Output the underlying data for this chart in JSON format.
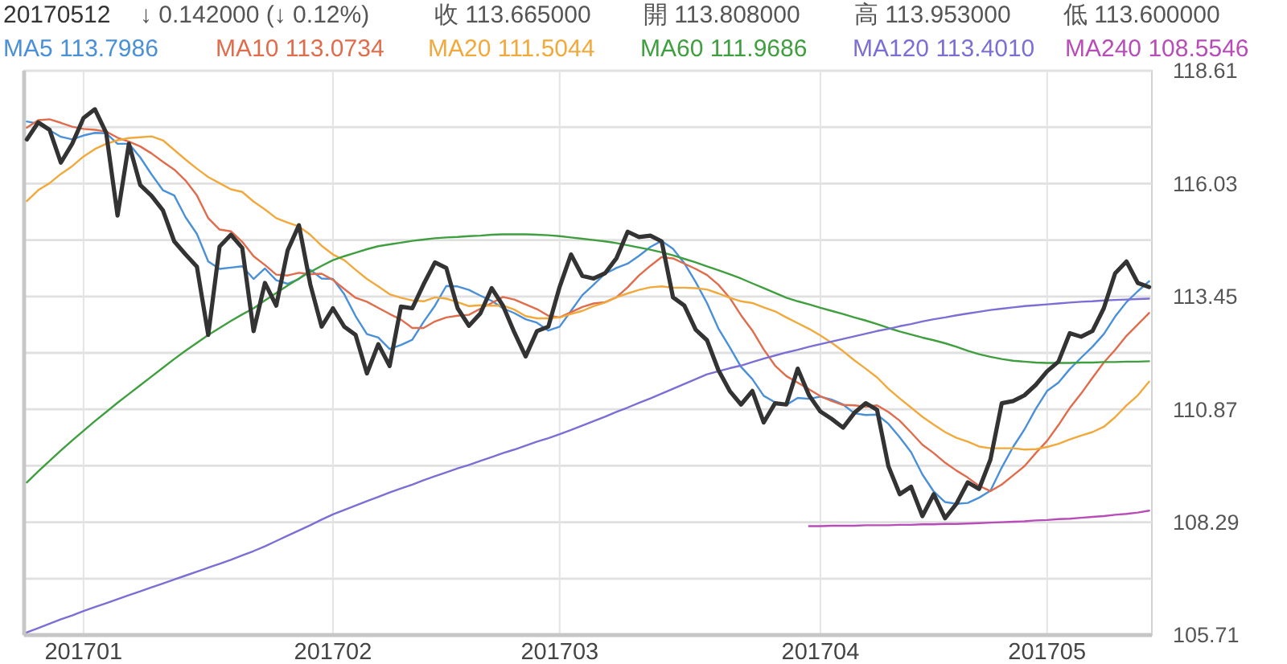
{
  "chart_data": {
    "type": "line",
    "annotations": [
      "20170512",
      "↓ 0.142000 (↓ 0.12%)",
      "收 113.665000",
      "開 113.808000",
      "高 113.953000",
      "低 113.600000"
    ],
    "categories": [
      null,
      null,
      null,
      null,
      null,
      "201701",
      null,
      null,
      null,
      null,
      null,
      null,
      null,
      null,
      null,
      null,
      null,
      null,
      null,
      null,
      null,
      null,
      null,
      null,
      null,
      null,
      null,
      "201702",
      null,
      null,
      null,
      null,
      null,
      null,
      null,
      null,
      null,
      null,
      null,
      null,
      null,
      null,
      null,
      null,
      null,
      null,
      null,
      "201703",
      null,
      null,
      null,
      null,
      null,
      null,
      null,
      null,
      null,
      null,
      null,
      null,
      null,
      null,
      null,
      null,
      null,
      null,
      null,
      null,
      null,
      null,
      "201704",
      null,
      null,
      null,
      null,
      null,
      null,
      null,
      null,
      null,
      null,
      null,
      null,
      null,
      null,
      null,
      null,
      null,
      null,
      null,
      "201705",
      null,
      null,
      null,
      null,
      null,
      null,
      null,
      null,
      null
    ],
    "series": [
      {
        "name": "MA5 113.7986",
        "color": "#4a90d9",
        "values": [
          117.45,
          117.4,
          117.25,
          117.1,
          117.04,
          117.13,
          117.19,
          117.18,
          116.94,
          116.94,
          116.63,
          116.24,
          115.88,
          115.76,
          115.26,
          114.88,
          114.25,
          114.08,
          114.11,
          114.14,
          113.85,
          114.09,
          113.82,
          113.74,
          113.85,
          114.06,
          113.86,
          113.85,
          113.5,
          113.0,
          112.59,
          112.51,
          112.25,
          112.34,
          112.46,
          112.87,
          113.24,
          113.69,
          113.68,
          113.6,
          113.47,
          113.35,
          113.18,
          113.07,
          112.93,
          112.85,
          112.67,
          112.76,
          113.12,
          113.48,
          113.72,
          113.97,
          114.1,
          114.2,
          114.38,
          114.58,
          114.72,
          114.54,
          114.21,
          113.78,
          113.3,
          112.72,
          112.29,
          111.84,
          111.56,
          111.18,
          111.03,
          110.97,
          111.13,
          111.11,
          111.16,
          111.09,
          110.98,
          110.78,
          110.74,
          110.75,
          110.54,
          110.23,
          109.89,
          109.38,
          108.99,
          108.75,
          108.71,
          108.73,
          108.85,
          109.01,
          109.54,
          110.01,
          110.41,
          110.88,
          111.29,
          111.48,
          111.79,
          112.05,
          112.3,
          112.59,
          112.99,
          113.32,
          113.57,
          113.7986
        ]
      },
      {
        "name": "MA10 113.0734",
        "color": "#e06c4c",
        "values": [
          117.31,
          117.48,
          117.5,
          117.42,
          117.33,
          117.28,
          117.26,
          117.22,
          117.08,
          116.99,
          116.88,
          116.72,
          116.53,
          116.35,
          116.1,
          115.76,
          115.24,
          114.98,
          114.94,
          114.7,
          114.37,
          114.17,
          113.95,
          113.93,
          113.99,
          113.96,
          113.97,
          113.83,
          113.62,
          113.42,
          113.33,
          113.19,
          113.05,
          112.92,
          112.73,
          112.73,
          112.88,
          112.97,
          113.01,
          113.03,
          113.17,
          113.3,
          113.44,
          113.38,
          113.27,
          113.16,
          113.01,
          112.97,
          113.09,
          113.21,
          113.29,
          113.32,
          113.43,
          113.66,
          113.93,
          114.15,
          114.35,
          114.32,
          114.2,
          114.08,
          113.94,
          113.72,
          113.42,
          113.02,
          112.67,
          112.24,
          111.87,
          111.63,
          111.48,
          111.33,
          111.17,
          111.06,
          110.97,
          110.96,
          110.93,
          110.96,
          110.81,
          110.61,
          110.34,
          110.06,
          109.87,
          109.65,
          109.47,
          109.31,
          109.12,
          109.0,
          109.15,
          109.36,
          109.57,
          109.87,
          110.15,
          110.51,
          110.9,
          111.23,
          111.59,
          111.94,
          112.23,
          112.55,
          112.81,
          113.0734
        ]
      },
      {
        "name": "MA20 111.5044",
        "color": "#f2a93b",
        "values": [
          115.63,
          115.88,
          116.04,
          116.25,
          116.43,
          116.65,
          116.82,
          116.94,
          117.02,
          117.07,
          117.09,
          117.11,
          117.02,
          116.8,
          116.58,
          116.37,
          116.18,
          116.04,
          115.9,
          115.84,
          115.62,
          115.44,
          115.24,
          115.14,
          115.05,
          114.86,
          114.61,
          114.41,
          114.28,
          114.06,
          113.85,
          113.68,
          113.5,
          113.42,
          113.36,
          113.34,
          113.43,
          113.4,
          113.32,
          113.23,
          113.25,
          113.24,
          113.24,
          113.15,
          113.0,
          112.95,
          112.95,
          112.97,
          113.05,
          113.12,
          113.23,
          113.31,
          113.43,
          113.52,
          113.6,
          113.66,
          113.68,
          113.65,
          113.65,
          113.64,
          113.61,
          113.52,
          113.42,
          113.34,
          113.3,
          113.2,
          113.11,
          112.97,
          112.84,
          112.71,
          112.56,
          112.39,
          112.2,
          111.99,
          111.8,
          111.6,
          111.34,
          111.12,
          110.91,
          110.7,
          110.52,
          110.35,
          110.22,
          110.13,
          110.02,
          109.98,
          109.98,
          109.98,
          109.95,
          109.96,
          110.01,
          110.08,
          110.18,
          110.27,
          110.35,
          110.47,
          110.69,
          110.96,
          111.19,
          111.5044
        ]
      },
      {
        "name": "MA60 111.9686",
        "color": "#3f9f3f",
        "values": [
          109.2,
          109.45,
          109.69,
          109.93,
          110.16,
          110.38,
          110.6,
          110.81,
          111.02,
          111.22,
          111.42,
          111.62,
          111.82,
          112.02,
          112.21,
          112.39,
          112.57,
          112.73,
          112.89,
          113.04,
          113.18,
          113.36,
          113.53,
          113.7,
          113.86,
          114.01,
          114.15,
          114.28,
          114.37,
          114.45,
          114.53,
          114.6,
          114.64,
          114.68,
          114.72,
          114.75,
          114.78,
          114.8,
          114.81,
          114.83,
          114.84,
          114.86,
          114.87,
          114.87,
          114.87,
          114.86,
          114.85,
          114.83,
          114.8,
          114.77,
          114.74,
          114.71,
          114.67,
          114.62,
          114.57,
          114.52,
          114.46,
          114.39,
          114.31,
          114.23,
          114.14,
          114.05,
          113.96,
          113.86,
          113.75,
          113.64,
          113.53,
          113.42,
          113.34,
          113.27,
          113.19,
          113.12,
          113.05,
          112.97,
          112.9,
          112.82,
          112.73,
          112.65,
          112.58,
          112.51,
          112.45,
          112.38,
          112.3,
          112.21,
          112.13,
          112.07,
          112.02,
          111.98,
          111.96,
          111.94,
          111.93,
          111.93,
          111.93,
          111.94,
          111.94,
          111.95,
          111.95,
          111.96,
          111.96,
          111.9686
        ]
      },
      {
        "name": "MA120 113.4010",
        "color": "#7b6fd6",
        "values": [
          105.77,
          105.87,
          105.97,
          106.07,
          106.16,
          106.26,
          106.35,
          106.44,
          106.53,
          106.62,
          106.71,
          106.8,
          106.89,
          106.98,
          107.07,
          107.16,
          107.25,
          107.34,
          107.43,
          107.53,
          107.63,
          107.74,
          107.86,
          107.98,
          108.1,
          108.22,
          108.35,
          108.47,
          108.57,
          108.67,
          108.77,
          108.87,
          108.97,
          109.06,
          109.15,
          109.25,
          109.34,
          109.43,
          109.52,
          109.6,
          109.69,
          109.78,
          109.87,
          109.95,
          110.04,
          110.13,
          110.21,
          110.3,
          110.4,
          110.5,
          110.6,
          110.7,
          110.81,
          110.91,
          111.02,
          111.12,
          111.23,
          111.34,
          111.45,
          111.56,
          111.67,
          111.74,
          111.81,
          111.87,
          111.95,
          112.03,
          112.1,
          112.17,
          112.23,
          112.3,
          112.36,
          112.42,
          112.48,
          112.54,
          112.6,
          112.66,
          112.71,
          112.77,
          112.82,
          112.88,
          112.93,
          112.97,
          113.02,
          113.06,
          113.1,
          113.14,
          113.17,
          113.2,
          113.23,
          113.25,
          113.27,
          113.29,
          113.31,
          113.33,
          113.34,
          113.36,
          113.37,
          113.38,
          113.39,
          113.401
        ]
      },
      {
        "name": "MA240 108.5546",
        "color": "#b84cb8",
        "values": [
          null,
          null,
          null,
          null,
          null,
          null,
          null,
          null,
          null,
          null,
          null,
          null,
          null,
          null,
          null,
          null,
          null,
          null,
          null,
          null,
          null,
          null,
          null,
          null,
          null,
          null,
          null,
          null,
          null,
          null,
          null,
          null,
          null,
          null,
          null,
          null,
          null,
          null,
          null,
          null,
          null,
          null,
          null,
          null,
          null,
          null,
          null,
          null,
          null,
          null,
          null,
          null,
          null,
          null,
          null,
          null,
          null,
          null,
          null,
          null,
          null,
          null,
          null,
          null,
          null,
          null,
          null,
          null,
          null,
          108.2,
          108.2,
          108.21,
          108.21,
          108.21,
          108.22,
          108.22,
          108.22,
          108.23,
          108.23,
          108.24,
          108.24,
          108.25,
          108.25,
          108.26,
          108.27,
          108.28,
          108.29,
          108.3,
          108.31,
          108.33,
          108.34,
          108.36,
          108.37,
          108.39,
          108.41,
          108.43,
          108.46,
          108.48,
          108.51,
          108.5546
        ]
      },
      {
        "color": "#333333",
        "values": [
          117.04,
          117.43,
          117.26,
          116.51,
          116.94,
          117.53,
          117.73,
          117.19,
          115.3,
          116.94,
          116.0,
          115.75,
          115.42,
          114.71,
          114.41,
          114.13,
          112.57,
          114.59,
          114.86,
          114.56,
          112.66,
          113.76,
          113.24,
          114.5,
          115.08,
          113.73,
          112.76,
          113.18,
          112.76,
          112.57,
          111.69,
          112.36,
          111.86,
          113.22,
          113.18,
          113.73,
          114.23,
          114.1,
          113.18,
          112.78,
          113.06,
          113.64,
          113.24,
          112.63,
          112.08,
          112.66,
          112.76,
          113.67,
          114.41,
          113.92,
          113.86,
          113.98,
          114.32,
          114.93,
          114.81,
          114.84,
          114.71,
          113.43,
          113.24,
          112.69,
          112.45,
          111.77,
          111.29,
          110.98,
          111.29,
          110.57,
          111.01,
          110.98,
          111.8,
          111.19,
          110.82,
          110.65,
          110.45,
          110.79,
          111.01,
          110.86,
          109.57,
          108.93,
          109.1,
          108.43,
          108.93,
          108.38,
          108.71,
          109.2,
          109.05,
          109.72,
          111.01,
          111.06,
          111.19,
          111.43,
          111.74,
          111.96,
          112.61,
          112.53,
          112.66,
          113.18,
          113.98,
          114.25,
          113.76,
          113.665
        ]
      }
    ],
    "ylim": [
      105.71,
      118.61
    ],
    "yticks": [
      105.71,
      {
        "value": 107,
        "label": null
      },
      108.29,
      {
        "value": 109.58,
        "label": null
      },
      110.87,
      {
        "value": 112.16,
        "label": null
      },
      113.45,
      {
        "value": 114.74,
        "label": null
      },
      116.03,
      {
        "value": 117.32,
        "label": null
      },
      118.61
    ],
    "grid": true,
    "legend": "top"
  }
}
